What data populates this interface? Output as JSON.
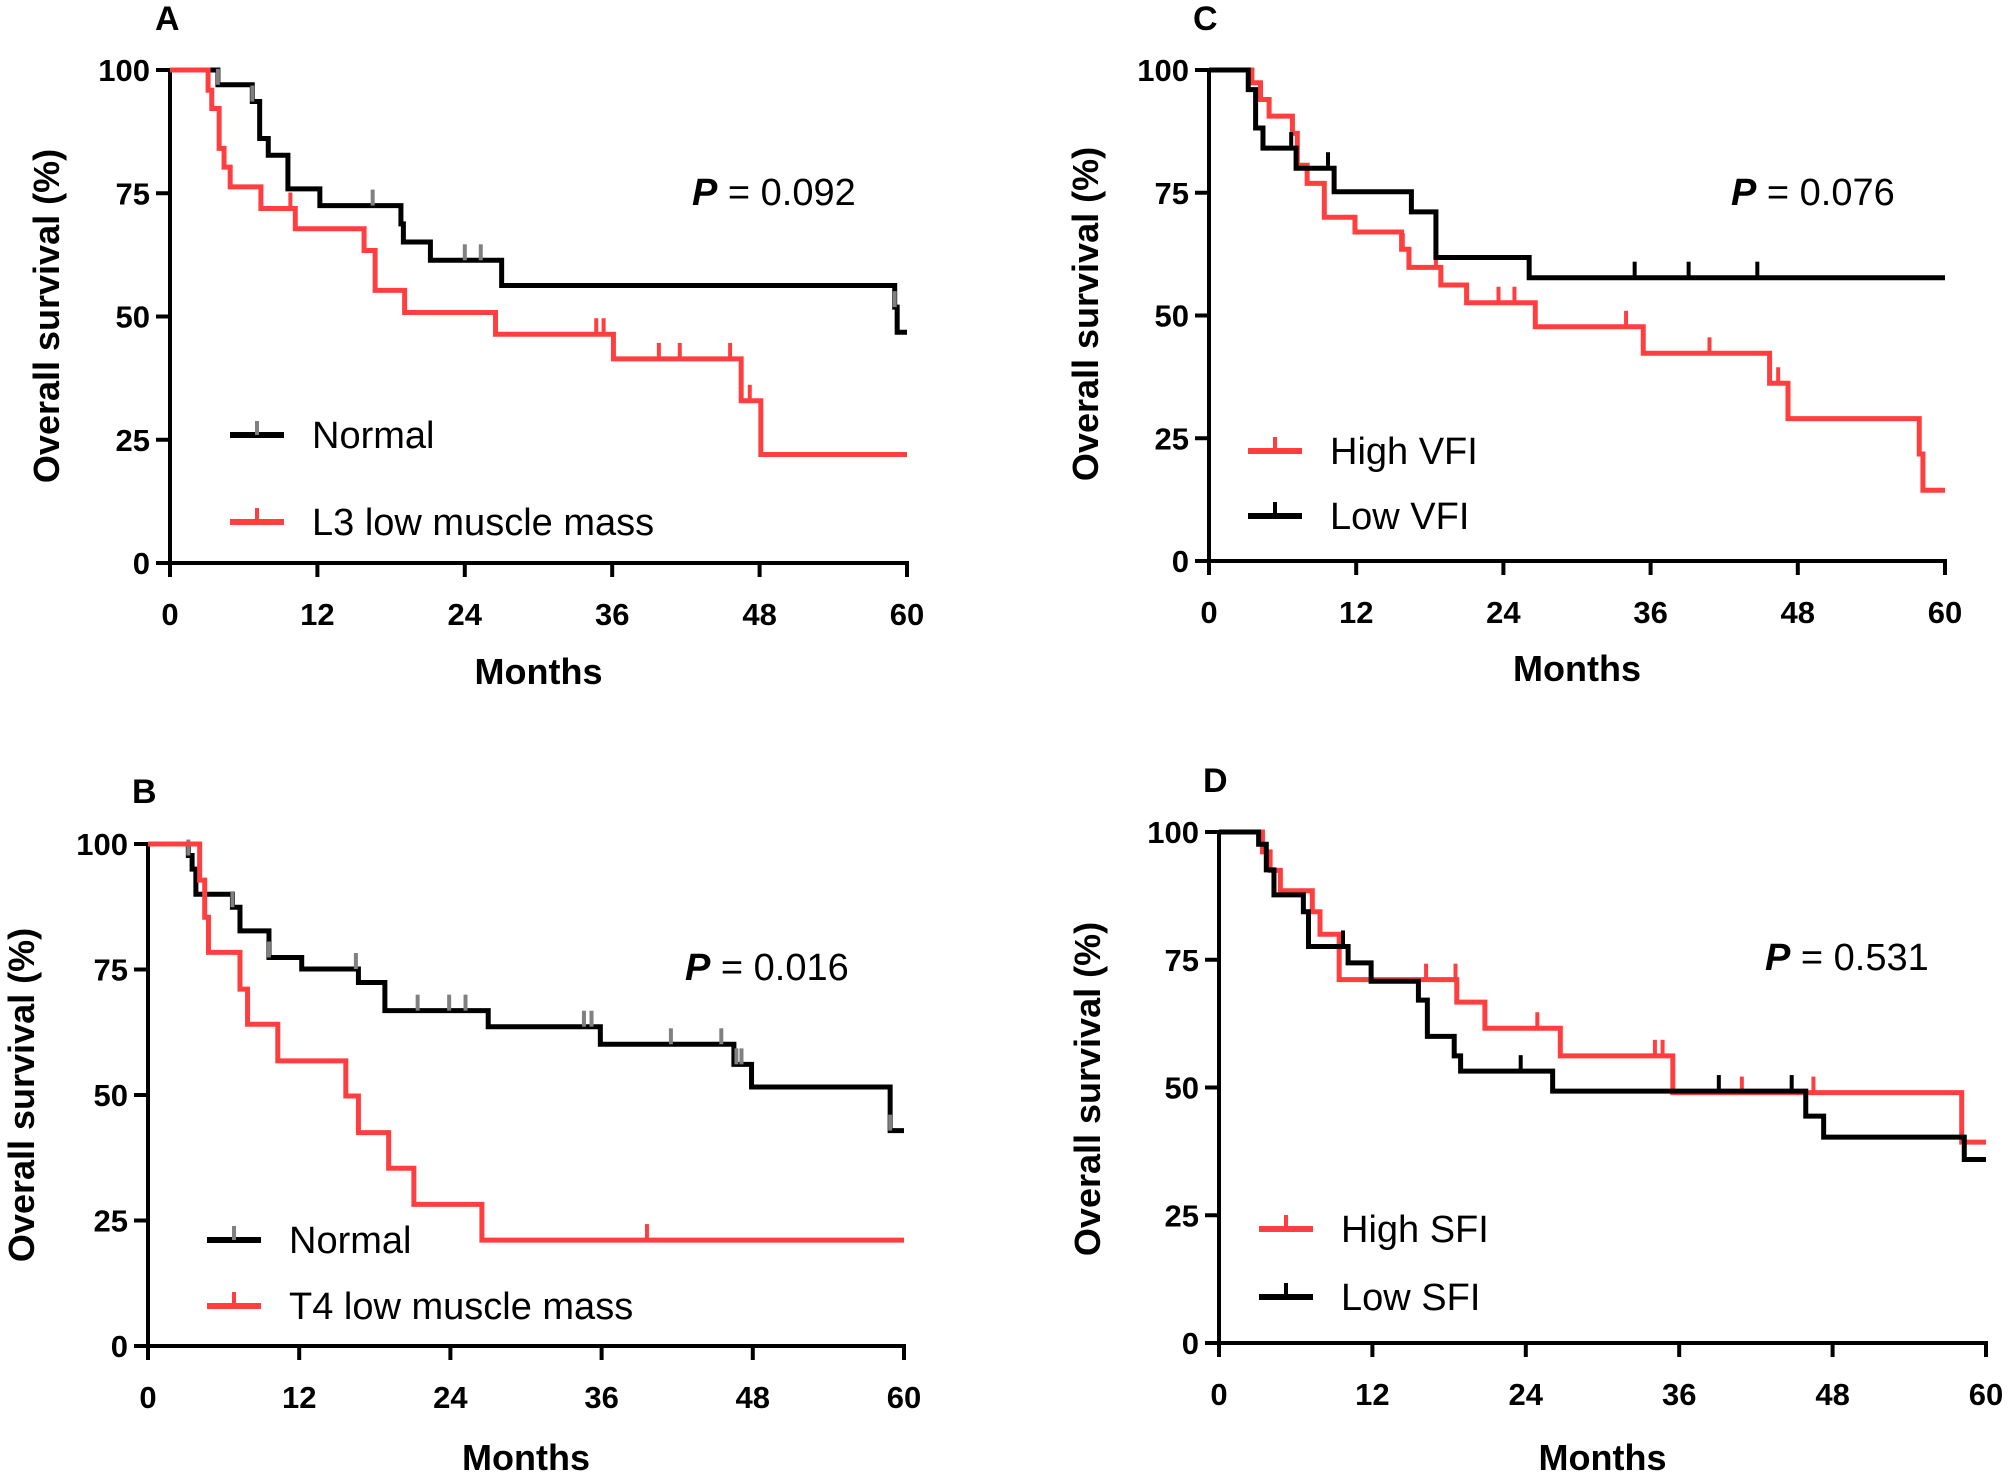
{
  "chart_data": [
    {
      "panel": "A",
      "type": "line",
      "subtype": "kaplan-meier",
      "xlabel": "Months",
      "ylabel": "Overall survival (%)",
      "xlim": [
        0,
        60
      ],
      "ylim": [
        0,
        100
      ],
      "xticks": [
        0,
        12,
        24,
        36,
        48,
        60
      ],
      "yticks": [
        0,
        25,
        50,
        75,
        100
      ],
      "p_label": "P",
      "p_value": " = 0.092",
      "legend": "bottom-left",
      "series": [
        {
          "name": "Normal",
          "color": "#000000",
          "censor_color": "#808080",
          "steps": [
            [
              3.9,
              97.0
            ],
            [
              6.7,
              93.6
            ],
            [
              7.3,
              86.1
            ],
            [
              8.0,
              82.7
            ],
            [
              9.6,
              75.9
            ],
            [
              12.2,
              72.5
            ],
            [
              18.8,
              68.8
            ],
            [
              19.0,
              65.1
            ],
            [
              21.2,
              61.4
            ],
            [
              27.0,
              56.3
            ],
            [
              59.0,
              51.9
            ],
            [
              59.2,
              46.8
            ]
          ],
          "censor": [
            3.9,
            6.7,
            16.5,
            24.0,
            25.3,
            59.0
          ]
        },
        {
          "name": "L3 low muscle mass",
          "color": "#ff3f3f",
          "censor_color": "#ff3f3f",
          "steps": [
            [
              3.1,
              95.9
            ],
            [
              3.4,
              92.2
            ],
            [
              4.0,
              84.1
            ],
            [
              4.4,
              80.3
            ],
            [
              4.9,
              76.3
            ],
            [
              7.4,
              71.9
            ],
            [
              10.2,
              67.8
            ],
            [
              15.8,
              63.4
            ],
            [
              16.7,
              55.3
            ],
            [
              19.1,
              50.8
            ],
            [
              26.5,
              46.4
            ],
            [
              36.1,
              41.4
            ],
            [
              46.5,
              32.9
            ],
            [
              48.1,
              22.0
            ]
          ],
          "censor": [
            9.8,
            34.7,
            35.3,
            39.8,
            41.5,
            45.6,
            47.2
          ]
        }
      ]
    },
    {
      "panel": "B",
      "type": "line",
      "subtype": "kaplan-meier",
      "xlabel": "Months",
      "ylabel": "Overall survival (%)",
      "xlim": [
        0,
        60
      ],
      "ylim": [
        0,
        100
      ],
      "xticks": [
        0,
        12,
        24,
        36,
        48,
        60
      ],
      "yticks": [
        0,
        25,
        50,
        75,
        100
      ],
      "p_label": "P",
      "p_value": " = 0.016",
      "legend": "bottom-left",
      "series": [
        {
          "name": "Normal",
          "color": "#000000",
          "censor_color": "#808080",
          "steps": [
            [
              3.2,
              97.7
            ],
            [
              3.5,
              95.0
            ],
            [
              3.8,
              90.0
            ],
            [
              6.7,
              87.4
            ],
            [
              7.3,
              82.7
            ],
            [
              9.6,
              77.4
            ],
            [
              12.2,
              75.1
            ],
            [
              16.7,
              72.4
            ],
            [
              18.8,
              66.8
            ],
            [
              27.0,
              63.6
            ],
            [
              35.9,
              60.1
            ],
            [
              46.5,
              56.1
            ],
            [
              47.9,
              51.6
            ],
            [
              58.9,
              42.9
            ]
          ],
          "censor": [
            3.2,
            6.7,
            9.6,
            16.5,
            21.4,
            23.9,
            25.2,
            34.6,
            35.2,
            41.5,
            45.5,
            46.7,
            47.1,
            58.9
          ]
        },
        {
          "name": "T4 low muscle mass",
          "color": "#ff3f3f",
          "censor_color": "#ff3f3f",
          "steps": [
            [
              4.1,
              92.8
            ],
            [
              4.5,
              85.4
            ],
            [
              4.8,
              78.4
            ],
            [
              7.3,
              71.1
            ],
            [
              7.9,
              64.1
            ],
            [
              10.3,
              56.8
            ],
            [
              15.7,
              49.8
            ],
            [
              16.7,
              42.5
            ],
            [
              19.1,
              35.4
            ],
            [
              21.1,
              28.2
            ],
            [
              26.5,
              21.1
            ]
          ],
          "censor": [
            39.6
          ]
        }
      ]
    },
    {
      "panel": "C",
      "type": "line",
      "subtype": "kaplan-meier",
      "xlabel": "Months",
      "ylabel": "Overall survival (%)",
      "xlim": [
        0,
        60
      ],
      "ylim": [
        0,
        100
      ],
      "xticks": [
        0,
        12,
        24,
        36,
        48,
        60
      ],
      "yticks": [
        0,
        25,
        50,
        75,
        100
      ],
      "p_label": "P",
      "p_value": " = 0.076",
      "legend": "bottom-left",
      "series": [
        {
          "name": "High VFI",
          "color": "#ff3f3f",
          "censor_color": "#ff3f3f",
          "steps": [
            [
              3.5,
              97.4
            ],
            [
              4.2,
              94.0
            ],
            [
              4.9,
              90.6
            ],
            [
              6.8,
              87.1
            ],
            [
              7.2,
              80.6
            ],
            [
              8.0,
              76.9
            ],
            [
              9.4,
              70.0
            ],
            [
              11.9,
              67.0
            ],
            [
              15.7,
              63.5
            ],
            [
              16.3,
              59.8
            ],
            [
              18.9,
              56.2
            ],
            [
              21.0,
              52.6
            ],
            [
              26.6,
              47.7
            ],
            [
              35.4,
              42.3
            ],
            [
              45.7,
              36.2
            ],
            [
              47.2,
              29.0
            ],
            [
              57.9,
              21.8
            ],
            [
              58.2,
              14.4
            ]
          ],
          "censor": [
            15.8,
            18.5,
            23.6,
            24.9,
            34.0,
            40.8,
            46.4
          ]
        },
        {
          "name": "Low VFI",
          "color": "#000000",
          "censor_color": "#000000",
          "steps": [
            [
              3.2,
              96.0
            ],
            [
              3.8,
              88.2
            ],
            [
              4.4,
              84.1
            ],
            [
              7.1,
              80.0
            ],
            [
              10.2,
              75.2
            ],
            [
              16.5,
              71.1
            ],
            [
              18.5,
              61.8
            ],
            [
              26.1,
              57.7
            ]
          ],
          "censor": [
            6.7,
            9.7,
            34.7,
            39.1,
            44.7
          ]
        }
      ]
    },
    {
      "panel": "D",
      "type": "line",
      "subtype": "kaplan-meier",
      "xlabel": "Months",
      "ylabel": "Overall survival (%)",
      "xlim": [
        0,
        60
      ],
      "ylim": [
        0,
        100
      ],
      "xticks": [
        0,
        12,
        24,
        36,
        48,
        60
      ],
      "yticks": [
        0,
        25,
        50,
        75,
        100
      ],
      "p_label": "P",
      "p_value": " = 0.531",
      "legend": "bottom-left",
      "series": [
        {
          "name": "High SFI",
          "color": "#ff3f3f",
          "censor_color": "#ff3f3f",
          "steps": [
            [
              3.4,
              96.1
            ],
            [
              4.0,
              92.5
            ],
            [
              4.8,
              88.5
            ],
            [
              7.3,
              84.4
            ],
            [
              7.9,
              80.0
            ],
            [
              9.4,
              71.1
            ],
            [
              18.6,
              66.7
            ],
            [
              20.8,
              61.6
            ],
            [
              26.7,
              56.2
            ],
            [
              35.5,
              49.0
            ],
            [
              58.1,
              39.3
            ]
          ],
          "censor": [
            16.2,
            18.5,
            24.9,
            34.1,
            34.7,
            40.9,
            46.5
          ]
        },
        {
          "name": "Low SFI",
          "color": "#000000",
          "censor_color": "#000000",
          "steps": [
            [
              3.1,
              97.6
            ],
            [
              3.7,
              92.6
            ],
            [
              4.3,
              87.7
            ],
            [
              6.6,
              84.4
            ],
            [
              7.0,
              77.6
            ],
            [
              10.1,
              74.4
            ],
            [
              11.9,
              70.8
            ],
            [
              15.6,
              67.1
            ],
            [
              16.3,
              60.0
            ],
            [
              18.4,
              56.2
            ],
            [
              18.9,
              53.2
            ],
            [
              26.1,
              49.3
            ],
            [
              45.9,
              44.4
            ],
            [
              47.3,
              40.3
            ],
            [
              58.3,
              35.9
            ]
          ],
          "censor": [
            9.7,
            23.6,
            39.1,
            44.8
          ]
        }
      ]
    }
  ]
}
